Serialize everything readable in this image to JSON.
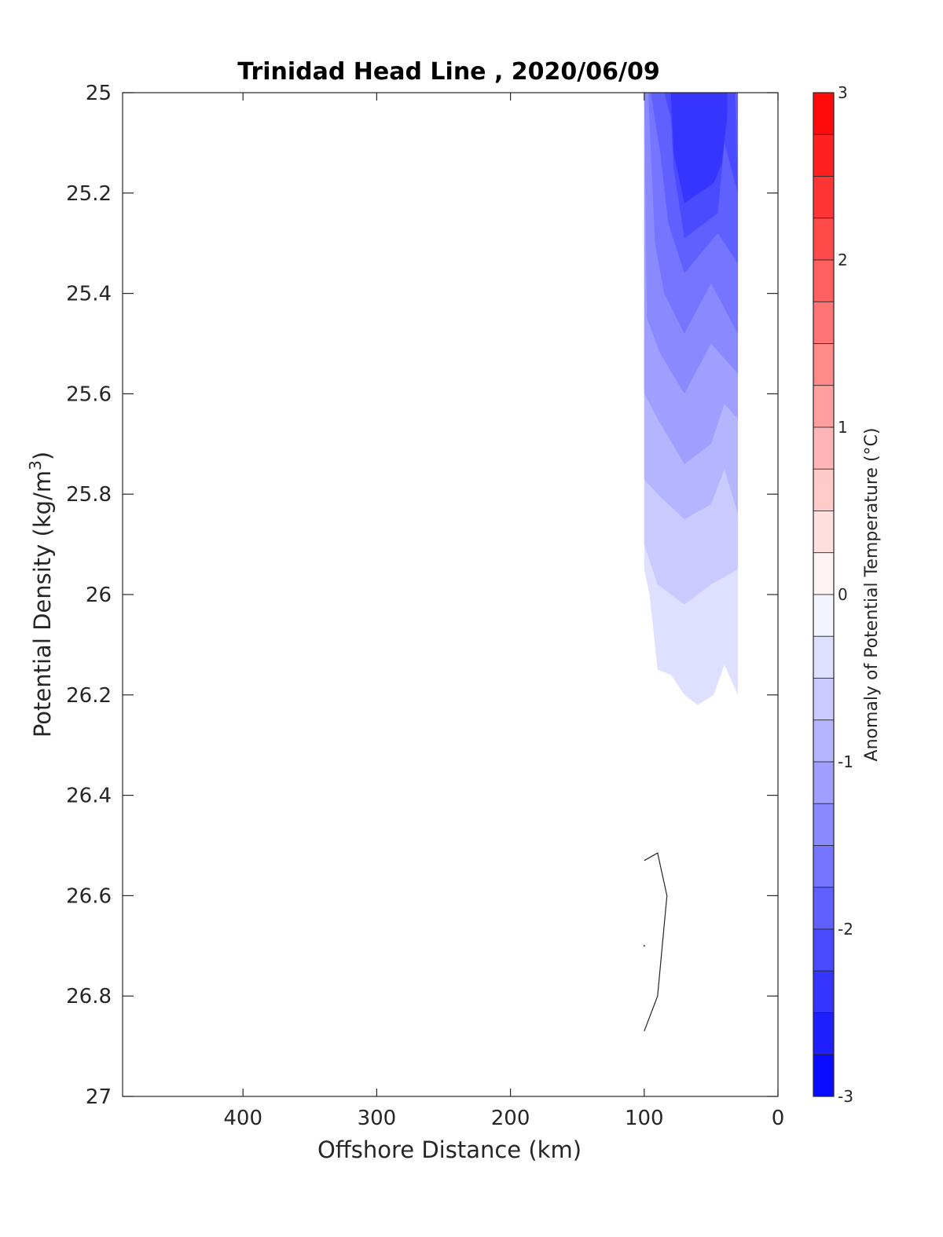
{
  "chart_data": {
    "type": "contour",
    "title": "Trinidad Head Line , 2020/06/09",
    "xlabel": "Offshore Distance (km)",
    "ylabel_main": "Potential Density (kg/m",
    "ylabel_sup": "3",
    "ylabel_end": ")",
    "xlim": [
      490,
      0
    ],
    "ylim": [
      25,
      27
    ],
    "y_reversed": true,
    "x_reversed": true,
    "xticks": [
      400,
      300,
      200,
      100,
      0
    ],
    "xtick_labels": [
      "400",
      "300",
      "200",
      "100",
      "0"
    ],
    "yticks": [
      25,
      25.2,
      25.4,
      25.6,
      25.8,
      26,
      26.2,
      26.4,
      26.6,
      26.8,
      27
    ],
    "ytick_labels": [
      "25",
      "25.2",
      "25.4",
      "25.6",
      "25.8",
      "26",
      "26.2",
      "26.4",
      "26.6",
      "26.8",
      "27"
    ],
    "colorbar": {
      "label": "Anomaly of Potential Temperature (°C)",
      "range": [
        -3,
        3
      ],
      "levels_step": 0.25,
      "ticks": [
        3,
        2,
        1,
        0,
        -1,
        -2,
        -3
      ],
      "tick_labels": [
        "3",
        "2",
        "1",
        "0",
        "-1",
        "-2",
        "-3"
      ],
      "cmap_neg": "#0000ff",
      "cmap_pos": "#ff0000",
      "cmap_mid": "#ffffff"
    },
    "contours": [
      {
        "level": -0.25,
        "points": [
          [
            100,
            25
          ],
          [
            30,
            25
          ],
          [
            30,
            26.2
          ],
          [
            40,
            26.14
          ],
          [
            48,
            26.2
          ],
          [
            60,
            26.22
          ],
          [
            70,
            26.2
          ],
          [
            80,
            26.16
          ],
          [
            90,
            26.15
          ],
          [
            96,
            26
          ],
          [
            100,
            25.95
          ]
        ]
      },
      {
        "level": -0.5,
        "points": [
          [
            100,
            25
          ],
          [
            30,
            25
          ],
          [
            30,
            25.95
          ],
          [
            50,
            25.98
          ],
          [
            70,
            26.02
          ],
          [
            90,
            25.98
          ],
          [
            100,
            25.9
          ]
        ]
      },
      {
        "level": -0.75,
        "points": [
          [
            100,
            25
          ],
          [
            30,
            25
          ],
          [
            30,
            25.84
          ],
          [
            40,
            25.75
          ],
          [
            50,
            25.82
          ],
          [
            70,
            25.85
          ],
          [
            90,
            25.8
          ],
          [
            100,
            25.77
          ]
        ]
      },
      {
        "level": -1.0,
        "points": [
          [
            100,
            25
          ],
          [
            30,
            25
          ],
          [
            30,
            25.65
          ],
          [
            40,
            25.62
          ],
          [
            50,
            25.7
          ],
          [
            70,
            25.74
          ],
          [
            90,
            25.65
          ],
          [
            100,
            25.6
          ]
        ]
      },
      {
        "level": -1.25,
        "points": [
          [
            100,
            25
          ],
          [
            30,
            25
          ],
          [
            30,
            25.56
          ],
          [
            50,
            25.5
          ],
          [
            70,
            25.6
          ],
          [
            88,
            25.52
          ],
          [
            98,
            25.45
          ]
        ]
      },
      {
        "level": -1.5,
        "points": [
          [
            97,
            25
          ],
          [
            30,
            25
          ],
          [
            30,
            25.48
          ],
          [
            50,
            25.38
          ],
          [
            70,
            25.48
          ],
          [
            85,
            25.4
          ],
          [
            92,
            25.3
          ]
        ]
      },
      {
        "level": -1.75,
        "points": [
          [
            95,
            25
          ],
          [
            30,
            25
          ],
          [
            30,
            25.34
          ],
          [
            45,
            25.28
          ],
          [
            70,
            25.36
          ],
          [
            82,
            25.26
          ],
          [
            88,
            25.12
          ]
        ]
      },
      {
        "level": -2.0,
        "points": [
          [
            85,
            25
          ],
          [
            32,
            25
          ],
          [
            30,
            25.2
          ],
          [
            40,
            25.1
          ],
          [
            45,
            25.24
          ],
          [
            70,
            25.29
          ],
          [
            78,
            25.15
          ],
          [
            80,
            25.05
          ]
        ]
      },
      {
        "level": -2.25,
        "points": [
          [
            80,
            25
          ],
          [
            38,
            25
          ],
          [
            38,
            25.05
          ],
          [
            42,
            25.14
          ],
          [
            48,
            25.18
          ],
          [
            70,
            25.22
          ],
          [
            78,
            25.12
          ]
        ]
      }
    ],
    "contour_line": [
      [
        100,
        26.53
      ],
      [
        90,
        26.515
      ],
      [
        83,
        26.6
      ],
      [
        90,
        26.8
      ],
      [
        100,
        26.87
      ]
    ],
    "dot": [
      100,
      26.7
    ]
  }
}
